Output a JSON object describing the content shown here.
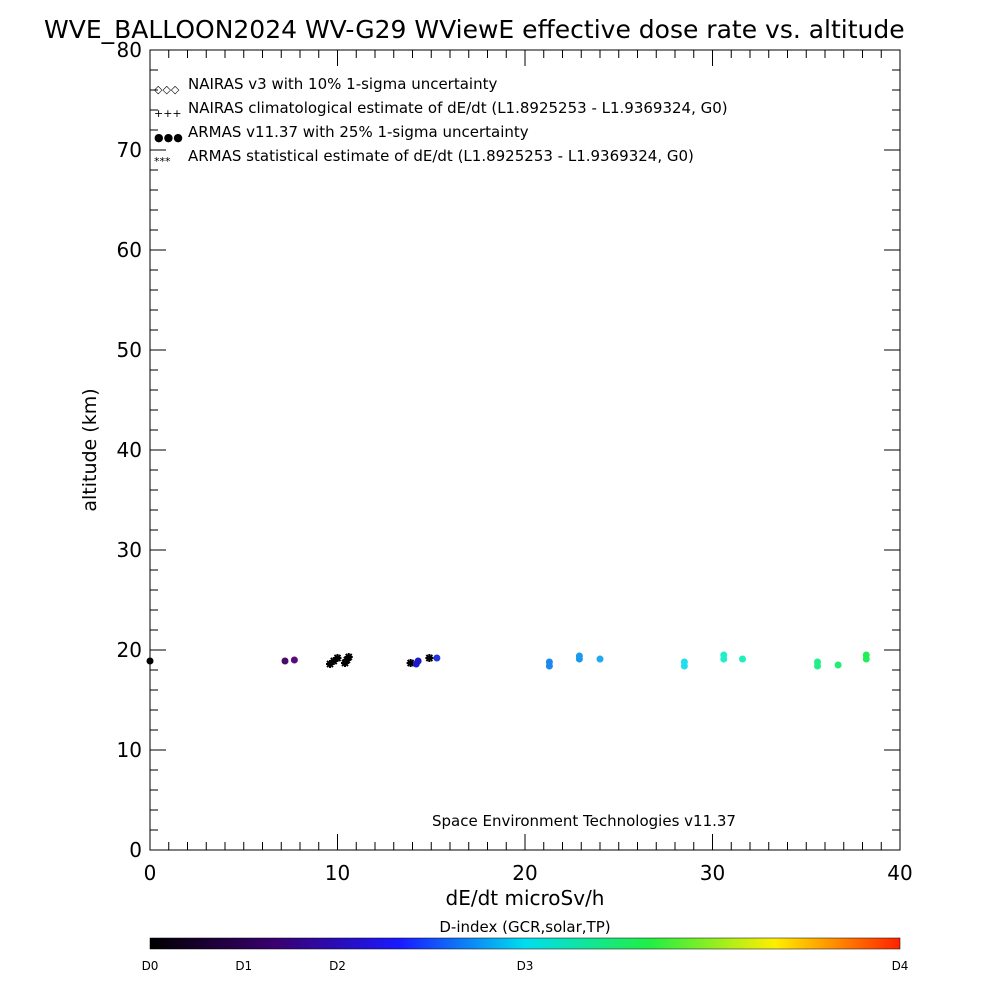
{
  "chart_data": {
    "type": "scatter",
    "title": "WVE_BALLOON2024 WV-G29 WViewE effective dose rate vs. altitude",
    "xlabel": "dE/dt microSv/h",
    "ylabel": "altitude (km)",
    "xlim": [
      0,
      40
    ],
    "ylim": [
      0,
      80
    ],
    "x_ticks": [
      "0",
      "10",
      "20",
      "30",
      "40"
    ],
    "y_ticks": [
      "0",
      "10",
      "20",
      "30",
      "40",
      "50",
      "60",
      "70",
      "80"
    ],
    "credit": "Space Environment Technologies v11.37",
    "legend": {
      "placement": "top-left",
      "entries": [
        {
          "symbol": "◇◇◇",
          "label": "NAIRAS v3 with 10% 1-sigma uncertainty",
          "color": "#000000"
        },
        {
          "symbol": "+++",
          "label": "NAIRAS climatological estimate of dE/dt (L1.8925253 - L1.9369324, G0)",
          "color": "#000000"
        },
        {
          "symbol": "●●●",
          "label": "ARMAS v11.37 with 25% 1-sigma uncertainty",
          "color": "#0022dd"
        },
        {
          "symbol": "***",
          "label": "ARMAS statistical estimate of dE/dt (L1.8925253 - L1.9369324, G0)",
          "color": "#000000"
        }
      ]
    },
    "series": [
      {
        "points": [
          {
            "x": 0.0,
            "y": 18.9,
            "color": "#000000",
            "marker": "dot"
          },
          {
            "x": 7.2,
            "y": 18.9,
            "color": "#4a0a6a",
            "marker": "dot"
          },
          {
            "x": 7.7,
            "y": 19.0,
            "color": "#5a0a7a",
            "marker": "dot"
          },
          {
            "x": 9.6,
            "y": 18.6,
            "color": "#000000",
            "marker": "star"
          },
          {
            "x": 9.8,
            "y": 18.9,
            "color": "#000000",
            "marker": "star"
          },
          {
            "x": 10.0,
            "y": 19.2,
            "color": "#000000",
            "marker": "star"
          },
          {
            "x": 10.4,
            "y": 18.7,
            "color": "#000000",
            "marker": "star"
          },
          {
            "x": 10.5,
            "y": 19.0,
            "color": "#000000",
            "marker": "star"
          },
          {
            "x": 10.6,
            "y": 19.3,
            "color": "#000000",
            "marker": "star"
          },
          {
            "x": 13.9,
            "y": 18.7,
            "color": "#000000",
            "marker": "star"
          },
          {
            "x": 14.2,
            "y": 18.6,
            "color": "#1a1ac8",
            "marker": "dot"
          },
          {
            "x": 14.3,
            "y": 18.9,
            "color": "#1a1ac8",
            "marker": "dot"
          },
          {
            "x": 14.9,
            "y": 19.2,
            "color": "#000000",
            "marker": "star"
          },
          {
            "x": 15.3,
            "y": 19.2,
            "color": "#2233dd",
            "marker": "dot"
          },
          {
            "x": 21.3,
            "y": 18.4,
            "color": "#1a88ee",
            "marker": "dot"
          },
          {
            "x": 21.3,
            "y": 18.8,
            "color": "#1a88ee",
            "marker": "dot"
          },
          {
            "x": 22.9,
            "y": 19.1,
            "color": "#1a99ee",
            "marker": "dot"
          },
          {
            "x": 22.9,
            "y": 19.4,
            "color": "#1a99ee",
            "marker": "dot"
          },
          {
            "x": 24.0,
            "y": 19.1,
            "color": "#22aaee",
            "marker": "dot"
          },
          {
            "x": 28.5,
            "y": 18.4,
            "color": "#22ddee",
            "marker": "dot"
          },
          {
            "x": 28.5,
            "y": 18.8,
            "color": "#22ddee",
            "marker": "dot"
          },
          {
            "x": 30.6,
            "y": 19.1,
            "color": "#22eecc",
            "marker": "dot"
          },
          {
            "x": 30.6,
            "y": 19.5,
            "color": "#22eecc",
            "marker": "dot"
          },
          {
            "x": 31.6,
            "y": 19.1,
            "color": "#22eebb",
            "marker": "dot"
          },
          {
            "x": 35.6,
            "y": 18.4,
            "color": "#22ee88",
            "marker": "dot"
          },
          {
            "x": 35.6,
            "y": 18.8,
            "color": "#22ee88",
            "marker": "dot"
          },
          {
            "x": 36.7,
            "y": 18.5,
            "color": "#22ee77",
            "marker": "dot"
          },
          {
            "x": 38.2,
            "y": 19.1,
            "color": "#22ee55",
            "marker": "dot"
          },
          {
            "x": 38.2,
            "y": 19.5,
            "color": "#22ee55",
            "marker": "dot"
          }
        ]
      }
    ],
    "colorbar": {
      "label": "D-index (GCR,solar,TP)",
      "colors": [
        "#000000",
        "#3a0070",
        "#1a1aff",
        "#00ddee",
        "#22ee44",
        "#ffee00",
        "#ff2200"
      ],
      "ticks": [
        {
          "label": "D0",
          "value": 0
        },
        {
          "label": "D1",
          "value": 1
        },
        {
          "label": "D2",
          "value": 2
        },
        {
          "label": "D3",
          "value": 3
        },
        {
          "label": "D4",
          "value": 4
        }
      ],
      "tick_scale_positions": [
        0,
        0.125,
        0.25,
        0.5,
        1.0
      ]
    }
  }
}
